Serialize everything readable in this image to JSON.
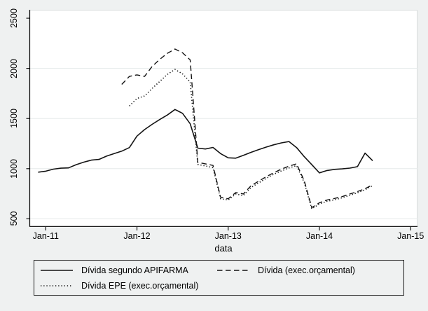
{
  "figure": {
    "background_color": "#eff1f1",
    "plot_background_color": "#ffffff",
    "gridline_color": "#e5eaea",
    "line_color": "#131313"
  },
  "chart_data": {
    "type": "line",
    "title": "",
    "xlabel": "data",
    "ylabel": "",
    "x_axis": {
      "label": "data",
      "tick_labels": [
        "Jan-11",
        "Jan-12",
        "Jan-13",
        "Jan-14",
        "Jan-15"
      ],
      "tick_months": [
        0,
        12,
        24,
        36,
        48
      ],
      "range_months": [
        -2.1,
        48.9
      ]
    },
    "y_axis": {
      "ticks": [
        500,
        1000,
        1500,
        2000,
        2500
      ],
      "gridline_values": [
        500,
        1000,
        1500,
        2000
      ],
      "range": [
        426,
        2584
      ],
      "grid": true
    },
    "legend_position": "bottom",
    "series": [
      {
        "name": "Dívida segundo APIFARMA",
        "style": "solid",
        "start_month": -1,
        "start_label": "Dec-10",
        "end_label": "Aug-14",
        "values": [
          965,
          975,
          995,
          1005,
          1008,
          1040,
          1065,
          1085,
          1092,
          1125,
          1150,
          1175,
          1210,
          1325,
          1390,
          1442,
          1490,
          1535,
          1590,
          1552,
          1448,
          1205,
          1196,
          1212,
          1150,
          1108,
          1105,
          1133,
          1163,
          1190,
          1215,
          1238,
          1257,
          1270,
          1210,
          1120,
          1040,
          958,
          982,
          993,
          998,
          1006,
          1020,
          1155,
          1080
        ]
      },
      {
        "name": "Dívida (exec.orçamental)",
        "style": "dashed",
        "start_month": 10,
        "start_label": "Nov-11",
        "end_label": "Aug-14",
        "values": [
          1840,
          1920,
          1935,
          1920,
          2020,
          2090,
          2150,
          2193,
          2155,
          2085,
          1062,
          1048,
          1032,
          715,
          700,
          762,
          748,
          830,
          875,
          920,
          960,
          995,
          1025,
          1048,
          880,
          612,
          660,
          688,
          703,
          722,
          748,
          772,
          800,
          840
        ]
      },
      {
        "name": "Dívida EPE (exec.orçamental)",
        "style": "dotted",
        "start_month": 11,
        "start_label": "Dec-11",
        "end_label": "Aug-14",
        "values": [
          1625,
          1700,
          1725,
          1800,
          1870,
          1940,
          1990,
          1945,
          1865,
          1042,
          1028,
          1010,
          700,
          688,
          748,
          732,
          812,
          858,
          903,
          945,
          978,
          1008,
          1030,
          862,
          600,
          648,
          675,
          690,
          710,
          735,
          760,
          790,
          832
        ]
      }
    ]
  },
  "legend": {
    "entries": [
      {
        "label": "Dívida segundo APIFARMA",
        "style": "solid"
      },
      {
        "label": "Dívida (exec.orçamental)",
        "style": "dashed"
      },
      {
        "label": "Dívida EPE (exec.orçamental)",
        "style": "dotted"
      }
    ]
  }
}
